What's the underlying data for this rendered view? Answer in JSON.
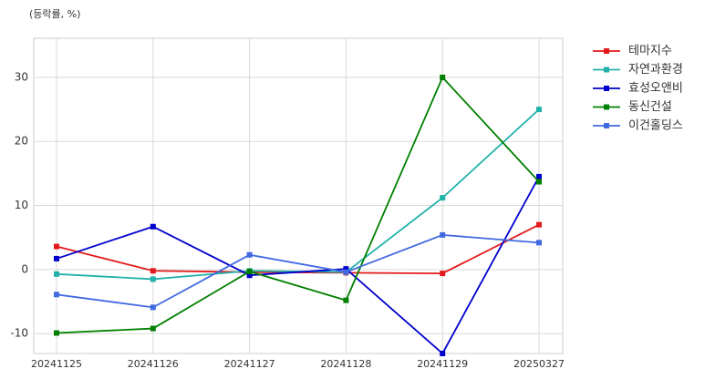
{
  "chart_data": {
    "type": "line",
    "y_label": "(등락률, %)",
    "categories": [
      "20241125",
      "20241126",
      "20241127",
      "20241128",
      "20241129",
      "20250327"
    ],
    "series": [
      {
        "name": "테마지수",
        "color": "#e31a1c",
        "values": [
          3.6,
          -0.2,
          -0.4,
          -0.5,
          -0.6,
          7.0
        ]
      },
      {
        "name": "자연과환경",
        "color": "#20b2aa",
        "values": [
          -0.7,
          -1.5,
          -0.2,
          -0.4,
          11.2,
          25.0
        ]
      },
      {
        "name": "효성오앤비",
        "color": "#0000cd",
        "values": [
          1.7,
          6.7,
          -0.9,
          0.1,
          -13.1,
          14.5
        ]
      },
      {
        "name": "동신건설",
        "color": "#008000",
        "values": [
          -9.9,
          -9.2,
          -0.3,
          -4.8,
          30.0,
          13.7
        ]
      },
      {
        "name": "이건홀딩스",
        "color": "#4169e1",
        "values": [
          -3.9,
          -5.9,
          2.3,
          -0.4,
          5.4,
          4.2
        ]
      }
    ],
    "ylim": [
      -13.1,
      36.1
    ],
    "yticks": [
      -10,
      0,
      10,
      20,
      30
    ],
    "grid": true,
    "legend": "right"
  }
}
